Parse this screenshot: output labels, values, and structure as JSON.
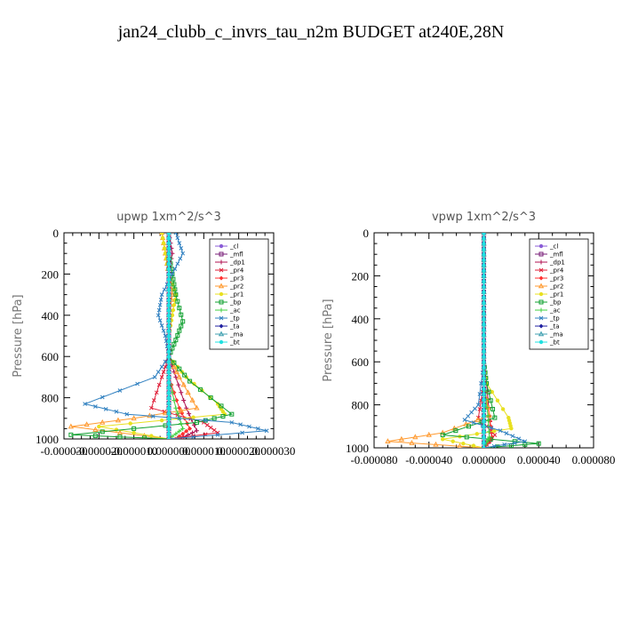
{
  "chart_data": [
    {
      "type": "line",
      "title": "upwp   1xm^2/s^3",
      "ylabel": "Pressure [hPa]",
      "xlim": [
        -3e-05,
        3e-05
      ],
      "ylim": [
        1000,
        0
      ],
      "yticks": [
        "0",
        "200",
        "400",
        "600",
        "800",
        "1000"
      ],
      "xticks": [
        "-0.000030",
        "-0.000020",
        "-0.000010",
        "0.000000",
        "0.000010",
        "0.000020",
        "0.000030"
      ],
      "legend_position": "top-right",
      "series": [
        {
          "name": "_cl",
          "color": "#8a5cd6",
          "x": [
            0,
            0,
            0,
            0,
            0,
            0,
            0,
            0,
            0,
            0,
            0
          ],
          "y": [
            0,
            100,
            200,
            300,
            400,
            500,
            600,
            700,
            800,
            900,
            1000
          ]
        },
        {
          "name": "_mfl",
          "color": "#7a1f78",
          "x": [
            0,
            0,
            0,
            0,
            0,
            0,
            0,
            0,
            0,
            0,
            0
          ],
          "y": [
            0,
            100,
            200,
            300,
            400,
            500,
            600,
            700,
            800,
            900,
            1000
          ]
        },
        {
          "name": "_dp1",
          "color": "#b01050",
          "x": [
            0,
            1e-06,
            0,
            0,
            0,
            0,
            0,
            2e-06,
            5e-06,
            8e-06,
            3e-06
          ],
          "y": [
            0,
            100,
            200,
            300,
            400,
            500,
            600,
            700,
            850,
            960,
            1000
          ]
        },
        {
          "name": "_pr4",
          "color": "#e0203a",
          "x": [
            0,
            0,
            0,
            0,
            0,
            0,
            0,
            -2e-06,
            -5e-06,
            1e-05,
            1.4e-05,
            0
          ],
          "y": [
            0,
            100,
            200,
            300,
            400,
            500,
            600,
            700,
            850,
            920,
            970,
            1000
          ]
        },
        {
          "name": "_pr3",
          "color": "#ff3030",
          "x": [
            0,
            0,
            0,
            0,
            0,
            0,
            0,
            0,
            3e-06,
            6e-06,
            2e-06
          ],
          "y": [
            0,
            100,
            200,
            300,
            400,
            500,
            600,
            700,
            850,
            950,
            1000
          ]
        },
        {
          "name": "_pr2",
          "color": "#ff9a30",
          "x": [
            -2e-06,
            -1e-06,
            0,
            1e-06,
            0,
            0,
            0,
            3e-06,
            8e-06,
            -1e-05,
            -2.8e-05,
            0
          ],
          "y": [
            0,
            100,
            200,
            300,
            400,
            500,
            600,
            700,
            850,
            900,
            940,
            1000
          ]
        },
        {
          "name": "_pr1",
          "color": "#e8e020",
          "x": [
            -2e-06,
            -1e-06,
            0,
            2e-06,
            1e-06,
            0,
            0,
            5e-06,
            1.4e-05,
            1.6e-05,
            -2e-05,
            0
          ],
          "y": [
            0,
            100,
            200,
            300,
            400,
            500,
            600,
            700,
            830,
            880,
            940,
            1000
          ]
        },
        {
          "name": "_bp",
          "color": "#10a030",
          "x": [
            0,
            0,
            1e-06,
            2e-06,
            4e-06,
            2e-06,
            0,
            6e-06,
            1.8e-05,
            8e-06,
            -2.8e-05,
            0
          ],
          "y": [
            0,
            100,
            200,
            300,
            430,
            520,
            600,
            720,
            880,
            920,
            980,
            1000
          ]
        },
        {
          "name": "_ac",
          "color": "#40d040",
          "x": [
            0,
            0,
            0,
            0,
            0,
            0,
            0,
            0,
            2e-06,
            4e-06,
            0
          ],
          "y": [
            0,
            100,
            200,
            300,
            400,
            500,
            600,
            700,
            850,
            950,
            1000
          ]
        },
        {
          "name": "_tp",
          "color": "#3080c0",
          "x": [
            2e-06,
            4e-06,
            1e-06,
            -2e-06,
            -3e-06,
            -1e-06,
            0,
            -4e-06,
            -2.4e-05,
            -1.2e-05,
            1.8e-05,
            2.8e-05,
            0
          ],
          "y": [
            0,
            100,
            200,
            300,
            400,
            500,
            600,
            700,
            830,
            880,
            920,
            960,
            1000
          ]
        },
        {
          "name": "_ta",
          "color": "#2020a0",
          "x": [
            0,
            0,
            0,
            0,
            0,
            0,
            0,
            0,
            0,
            0,
            0
          ],
          "y": [
            0,
            100,
            200,
            300,
            400,
            500,
            600,
            700,
            800,
            900,
            1000
          ]
        },
        {
          "name": "_ma",
          "color": "#40a0b0",
          "x": [
            0,
            0,
            0,
            0,
            0,
            0,
            0,
            0,
            0,
            0,
            0
          ],
          "y": [
            0,
            100,
            200,
            300,
            400,
            500,
            600,
            700,
            800,
            900,
            1000
          ]
        },
        {
          "name": "_bt",
          "color": "#20e0e0",
          "x": [
            0,
            0,
            0,
            0,
            0,
            0,
            0,
            0,
            0,
            0,
            0
          ],
          "y": [
            0,
            100,
            200,
            300,
            400,
            500,
            600,
            700,
            800,
            900,
            1000
          ]
        }
      ]
    },
    {
      "type": "line",
      "title": "vpwp   1xm^2/s^3",
      "ylabel": "Pressure [hPa]",
      "xlim": [
        -8e-05,
        8e-05
      ],
      "ylim": [
        1000,
        0
      ],
      "yticks": [
        "0",
        "200",
        "400",
        "600",
        "800",
        "1000"
      ],
      "xticks": [
        "-0.000080",
        "-0.000040",
        "0.000000",
        "0.000040",
        "0.000080"
      ],
      "legend_position": "top-right",
      "series": [
        {
          "name": "_cl",
          "color": "#8a5cd6",
          "x": [
            0,
            0,
            0,
            0,
            0,
            0,
            0,
            0,
            0,
            0,
            0
          ],
          "y": [
            0,
            100,
            200,
            300,
            400,
            500,
            600,
            700,
            800,
            900,
            1000
          ]
        },
        {
          "name": "_mfl",
          "color": "#7a1f78",
          "x": [
            0,
            0,
            0,
            0,
            0,
            0,
            0,
            0,
            0,
            0,
            0
          ],
          "y": [
            0,
            100,
            200,
            300,
            400,
            500,
            600,
            700,
            800,
            900,
            1000
          ]
        },
        {
          "name": "_dp1",
          "color": "#b01050",
          "x": [
            0,
            0,
            0,
            0,
            0,
            0,
            0,
            2e-06,
            4e-06,
            6e-06,
            0
          ],
          "y": [
            0,
            100,
            200,
            300,
            400,
            500,
            600,
            700,
            850,
            960,
            1000
          ]
        },
        {
          "name": "_pr4",
          "color": "#e0203a",
          "x": [
            0,
            0,
            0,
            0,
            0,
            0,
            0,
            0,
            -4e-06,
            8e-06,
            0
          ],
          "y": [
            0,
            100,
            200,
            300,
            400,
            500,
            600,
            700,
            860,
            940,
            1000
          ]
        },
        {
          "name": "_pr3",
          "color": "#ff3030",
          "x": [
            0,
            0,
            0,
            0,
            0,
            0,
            0,
            0,
            4e-06,
            6e-06,
            0
          ],
          "y": [
            0,
            100,
            200,
            300,
            400,
            500,
            600,
            700,
            850,
            950,
            1000
          ]
        },
        {
          "name": "_pr2",
          "color": "#ff9a30",
          "x": [
            0,
            0,
            0,
            0,
            0,
            0,
            0,
            0,
            4e-06,
            -3e-05,
            -7e-05,
            0
          ],
          "y": [
            0,
            100,
            200,
            300,
            400,
            500,
            600,
            700,
            850,
            930,
            970,
            1000
          ]
        },
        {
          "name": "_pr1",
          "color": "#e8e020",
          "x": [
            0,
            0,
            0,
            0,
            0,
            0,
            0,
            2e-06,
            1.8e-05,
            2e-05,
            -3e-05,
            0
          ],
          "y": [
            0,
            100,
            200,
            300,
            400,
            500,
            600,
            700,
            860,
            910,
            960,
            1000
          ]
        },
        {
          "name": "_bp",
          "color": "#10a030",
          "x": [
            0,
            0,
            0,
            0,
            0,
            0,
            0,
            2e-06,
            8e-06,
            -3e-05,
            4e-05,
            0
          ],
          "y": [
            0,
            100,
            200,
            300,
            400,
            500,
            600,
            700,
            860,
            940,
            980,
            1000
          ]
        },
        {
          "name": "_ac",
          "color": "#40d040",
          "x": [
            0,
            0,
            0,
            0,
            0,
            0,
            0,
            0,
            3e-06,
            4e-06,
            0
          ],
          "y": [
            0,
            100,
            200,
            300,
            400,
            500,
            600,
            700,
            850,
            950,
            1000
          ]
        },
        {
          "name": "_tp",
          "color": "#3080c0",
          "x": [
            0,
            0,
            0,
            0,
            0,
            0,
            0,
            -4e-06,
            -1.4e-05,
            1.2e-05,
            3e-05,
            0
          ],
          "y": [
            0,
            100,
            200,
            300,
            400,
            500,
            600,
            800,
            870,
            920,
            970,
            1000
          ]
        },
        {
          "name": "_ta",
          "color": "#2020a0",
          "x": [
            0,
            0,
            0,
            0,
            0,
            0,
            0,
            0,
            0,
            0,
            0
          ],
          "y": [
            0,
            100,
            200,
            300,
            400,
            500,
            600,
            700,
            800,
            900,
            1000
          ]
        },
        {
          "name": "_ma",
          "color": "#40a0b0",
          "x": [
            0,
            0,
            0,
            0,
            0,
            0,
            0,
            0,
            0,
            0,
            0
          ],
          "y": [
            0,
            100,
            200,
            300,
            400,
            500,
            600,
            700,
            800,
            900,
            1000
          ]
        },
        {
          "name": "_bt",
          "color": "#20e0e0",
          "x": [
            0,
            0,
            0,
            0,
            0,
            0,
            0,
            0,
            0,
            0,
            0
          ],
          "y": [
            0,
            100,
            200,
            300,
            400,
            500,
            600,
            700,
            800,
            900,
            1000
          ]
        }
      ]
    }
  ],
  "figure": {
    "title": "jan24_clubb_c_invrs_tau_n2m  BUDGET at240E,28N"
  }
}
